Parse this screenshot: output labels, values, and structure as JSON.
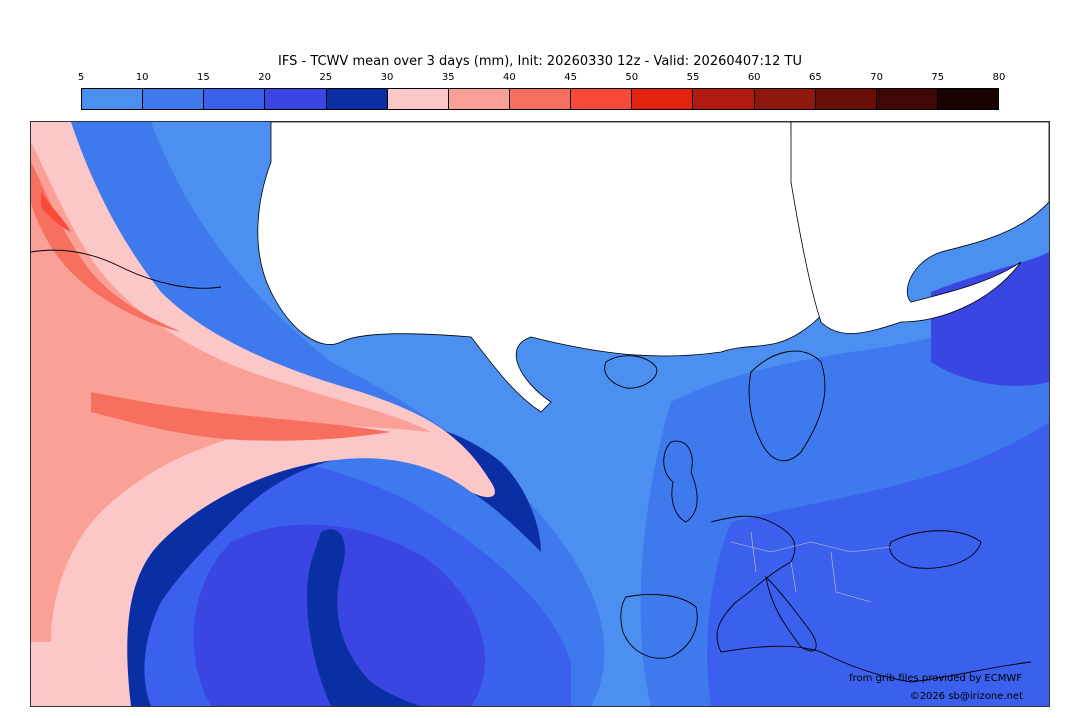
{
  "title": "IFS - TCWV mean over 3 days (mm), Init: 20260330 12z - Valid: 20260407:12 TU",
  "colorbar": {
    "ticks": [
      "5",
      "10",
      "15",
      "20",
      "25",
      "30",
      "35",
      "40",
      "45",
      "50",
      "55",
      "60",
      "65",
      "70",
      "75",
      "80"
    ],
    "colors": [
      "#4b8ff0",
      "#3f79ee",
      "#3c60ee",
      "#3a46e2",
      "#0a2fa4",
      "#fcc7c7",
      "#fba097",
      "#f7705f",
      "#f84a37",
      "#e0220e",
      "#b01b0f",
      "#8e170e",
      "#6a0f08",
      "#3f0706",
      "#190201"
    ]
  },
  "map": {
    "ocean_base_color": "#4b8ff0",
    "land_color": "#ffffff",
    "coastline_color": "#000000"
  },
  "credits": {
    "source": "from grib files provided by ECMWF",
    "copyright": "©2026 sb@irizone.net"
  }
}
